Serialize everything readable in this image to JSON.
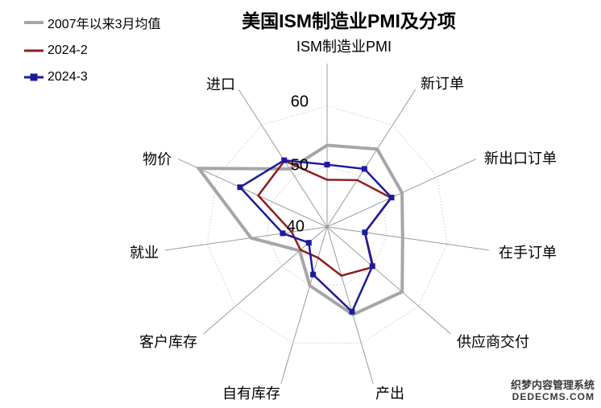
{
  "title": "美国ISM制造业PMI及分项",
  "watermark": {
    "line1": "织梦内容管理系统",
    "line2": "DEDECMS.COM"
  },
  "chart_data": {
    "type": "radar",
    "title": "美国ISM制造业PMI及分项",
    "categories": [
      "ISM制造业PMI",
      "新订单",
      "新出口订单",
      "在手订单",
      "供应商交付",
      "产出",
      "自有库存",
      "客户库存",
      "就业",
      "物价",
      "进口"
    ],
    "series": [
      {
        "name": "2007年以来3月均值",
        "color": "#a6a6a6",
        "line_width": 4,
        "marker": "none",
        "values": [
          53.5,
          55.3,
          53.6,
          52.6,
          56.4,
          55.1,
          50.1,
          46.0,
          52.7,
          63.3,
          51.4
        ]
      },
      {
        "name": "2024-2",
        "color": "#8e1c1c",
        "line_width": 2.5,
        "marker": "none",
        "values": [
          47.8,
          49.2,
          51.6,
          46.3,
          50.1,
          48.4,
          45.3,
          45.8,
          45.9,
          52.5,
          53.0
        ]
      },
      {
        "name": "2024-3",
        "color": "#1b1b9e",
        "line_width": 2.5,
        "marker": "square",
        "values": [
          50.3,
          51.4,
          51.7,
          46.3,
          49.9,
          54.6,
          48.2,
          44.0,
          47.4,
          55.8,
          53.1
        ]
      }
    ],
    "axis": {
      "min": 40,
      "max": 67,
      "major_unit": 10,
      "tick_labels": [
        "60",
        "50",
        "40"
      ],
      "gridline_values": [
        50,
        60
      ],
      "grid_style": "dotted"
    },
    "legend_position": "top-left"
  }
}
